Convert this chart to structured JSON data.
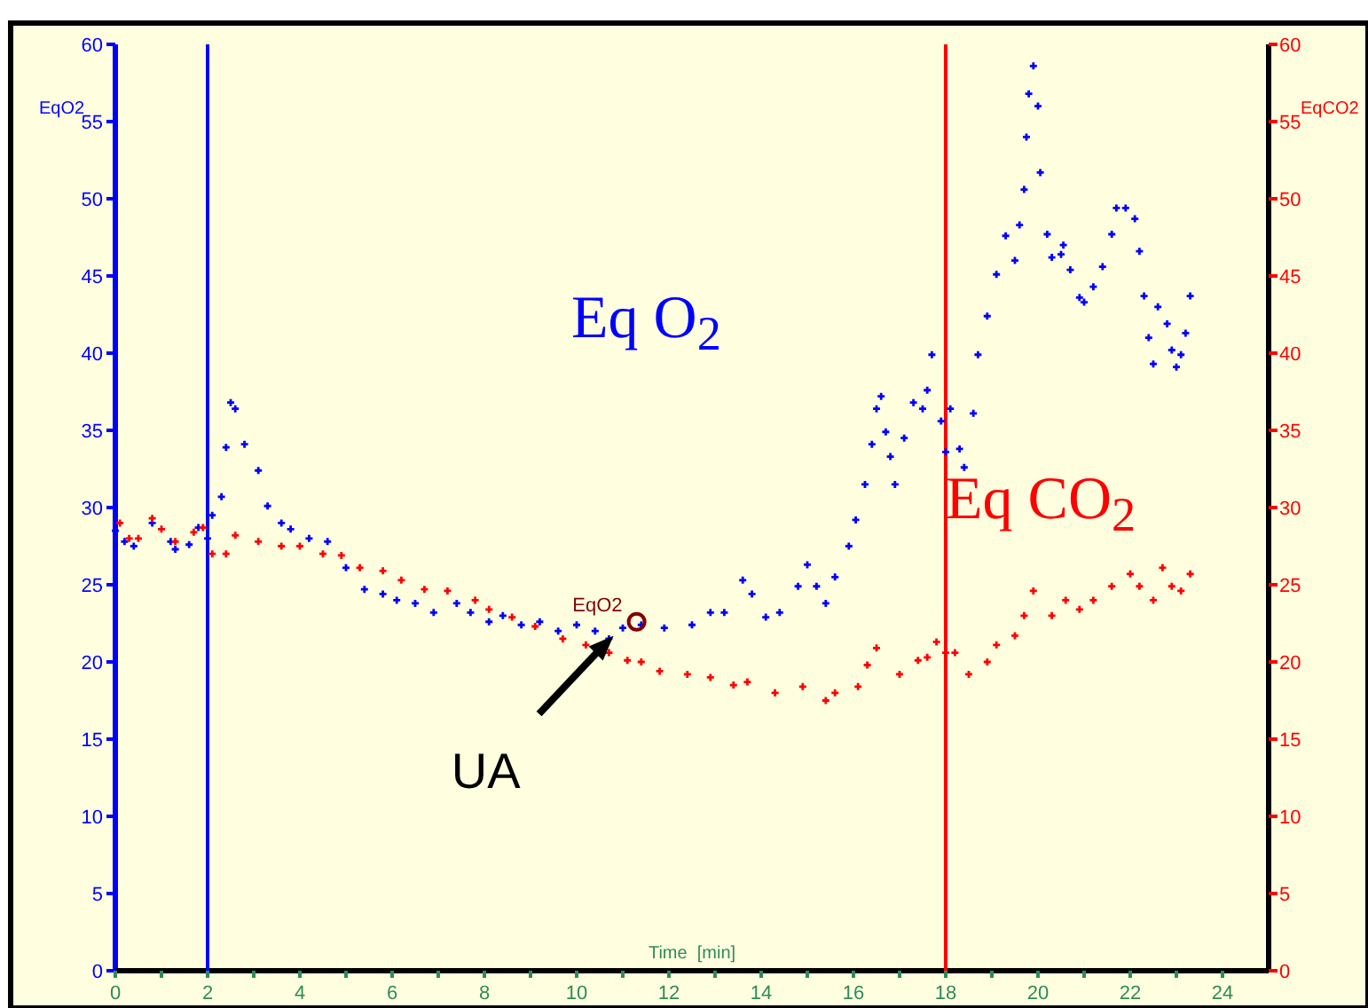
{
  "chart_data": {
    "type": "scatter",
    "xlabel": "Time  [min]",
    "ylabel": "EqO2",
    "y2label": "EqCO2",
    "xlim": [
      0,
      25
    ],
    "xticks": [
      0,
      {
        "value": 1,
        "label": null
      },
      2,
      {
        "value": 3,
        "label": null
      },
      4,
      {
        "value": 5,
        "label": null
      },
      6,
      {
        "value": 7,
        "label": null
      },
      8,
      {
        "value": 9,
        "label": null
      },
      10,
      {
        "value": 11,
        "label": null
      },
      12,
      {
        "value": 13,
        "label": null
      },
      14,
      {
        "value": 15,
        "label": null
      },
      16,
      {
        "value": 17,
        "label": null
      },
      18,
      {
        "value": 19,
        "label": null
      },
      20,
      {
        "value": 21,
        "label": null
      },
      22,
      {
        "value": 23,
        "label": null
      },
      24
    ],
    "ylim": [
      0,
      60
    ],
    "yticks": [
      0,
      5,
      10,
      15,
      20,
      25,
      30,
      35,
      40,
      45,
      50,
      55,
      60
    ],
    "y2lim": [
      0,
      60
    ],
    "y2ticks": [
      0,
      5,
      10,
      15,
      20,
      25,
      30,
      35,
      40,
      45,
      50,
      55,
      60
    ],
    "grid": false,
    "marker": "cross",
    "series": [
      {
        "name": "Eq O$_{2}$",
        "color": "#0000ff",
        "x": [
          0,
          0.2,
          0.4,
          0.8,
          1.2,
          1.3,
          1.6,
          1.8,
          2.0,
          2.1,
          2.3,
          2.4,
          2.5,
          2.6,
          2.8,
          3.1,
          3.3,
          3.6,
          3.8,
          4.2,
          4.6,
          5.0,
          5.4,
          5.8,
          6.1,
          6.5,
          6.9,
          7.4,
          7.7,
          8.1,
          8.4,
          8.8,
          9.2,
          9.6,
          10,
          10.4,
          10.7,
          11.0,
          11.4,
          11.9,
          12.5,
          12.9,
          13.2,
          13.6,
          13.8,
          14.1,
          14.4,
          14.8,
          15.0,
          15.2,
          15.4,
          15.6,
          15.9,
          16.05,
          16.25,
          16.4,
          16.5,
          16.6,
          16.7,
          16.8,
          16.9,
          17.1,
          17.3,
          17.5,
          17.6,
          17.7,
          17.9,
          18.0,
          18.1,
          18.3,
          18.4,
          18.6,
          18.7,
          18.9,
          19.1,
          19.3,
          19.5,
          19.6,
          19.7,
          19.75,
          19.8,
          19.9,
          20.0,
          20.05,
          20.2,
          20.3,
          20.5,
          20.55,
          20.7,
          20.9,
          21.0,
          21.2,
          21.4,
          21.6,
          21.7,
          21.9,
          22.1,
          22.2,
          22.3,
          22.4,
          22.5,
          22.6,
          22.8,
          22.9,
          23.0,
          23.1,
          23.2,
          23.3
        ],
        "values": [
          28.5,
          27.8,
          27.5,
          29,
          27.8,
          27.3,
          27.6,
          28.7,
          28,
          29.5,
          30.7,
          33.9,
          36.8,
          36.4,
          34.1,
          32.4,
          30.1,
          29,
          28.6,
          28,
          27.8,
          26.1,
          24.7,
          24.4,
          24,
          23.8,
          23.2,
          23.8,
          23.2,
          22.6,
          23,
          22.4,
          22.6,
          22,
          22.4,
          22,
          21.5,
          22.2,
          22.4,
          22.2,
          22.4,
          23.2,
          23.2,
          25.3,
          24.4,
          22.9,
          23.2,
          24.9,
          26.3,
          24.9,
          23.8,
          25.5,
          27.5,
          29.2,
          31.5,
          34.1,
          36.4,
          37.2,
          34.9,
          33.3,
          31.5,
          34.5,
          36.8,
          36.4,
          37.6,
          39.9,
          35.6,
          33.6,
          36.4,
          33.8,
          32.6,
          36.1,
          39.9,
          42.4,
          45.1,
          47.6,
          46,
          48.3,
          50.6,
          54,
          56.8,
          58.6,
          56,
          51.7,
          47.7,
          46.2,
          46.4,
          47,
          45.4,
          43.6,
          43.3,
          44.3,
          45.6,
          47.7,
          49.4,
          49.4,
          48.7,
          46.6,
          43.7,
          41,
          39.3,
          43,
          41.9,
          40.2,
          39.1,
          39.9,
          41.3,
          43.7
        ]
      },
      {
        "name": "Eq CO$_{2}$",
        "color": "#ff0000",
        "axis": "y2",
        "x": [
          0.1,
          0.3,
          0.5,
          0.8,
          1.0,
          1.3,
          1.7,
          1.9,
          2.1,
          2.4,
          2.6,
          3.1,
          3.6,
          4.0,
          4.5,
          4.9,
          5.3,
          5.8,
          6.2,
          6.7,
          7.2,
          7.8,
          8.1,
          8.6,
          9.1,
          9.7,
          10.2,
          10.7,
          11.1,
          11.4,
          11.8,
          12.4,
          12.9,
          13.4,
          13.7,
          14.3,
          14.9,
          15.4,
          15.6,
          16.1,
          16.3,
          16.5,
          17.0,
          17.4,
          17.6,
          17.8,
          18.0,
          18.2,
          18.5,
          18.9,
          19.1,
          19.5,
          19.7,
          19.9,
          20.3,
          20.6,
          20.9,
          21.2,
          21.6,
          22.0,
          22.2,
          22.5,
          22.7,
          22.9,
          23.1,
          23.3
        ],
        "values": [
          29,
          28,
          28,
          29.3,
          28.6,
          27.8,
          28.4,
          28.7,
          27,
          27,
          28.2,
          27.8,
          27.5,
          27.5,
          27,
          26.9,
          26.1,
          25.9,
          25.3,
          24.7,
          24.6,
          24,
          23.4,
          22.9,
          22.3,
          21.5,
          21.1,
          20.6,
          20.1,
          20,
          19.4,
          19.2,
          19,
          18.5,
          18.7,
          18,
          18.4,
          17.5,
          18,
          18.4,
          19.8,
          20.9,
          19.2,
          20.1,
          20.3,
          21.3,
          20.6,
          20.6,
          19.2,
          20,
          21.1,
          21.7,
          23,
          24.6,
          23,
          24,
          23.4,
          24,
          24.9,
          25.7,
          24.9,
          24,
          26.1,
          24.9,
          24.6,
          25.7
        ]
      }
    ],
    "ref_lines": [
      {
        "axis": "x",
        "value": 2,
        "color": "#0000ff"
      },
      {
        "axis": "x",
        "value": 18,
        "color": "#ff0000"
      }
    ],
    "annotations": [
      {
        "text": "EqO2",
        "x": 11.3,
        "y": 22.6
      },
      {
        "text": "UA",
        "x": 10.8,
        "y": 21.7
      }
    ]
  }
}
